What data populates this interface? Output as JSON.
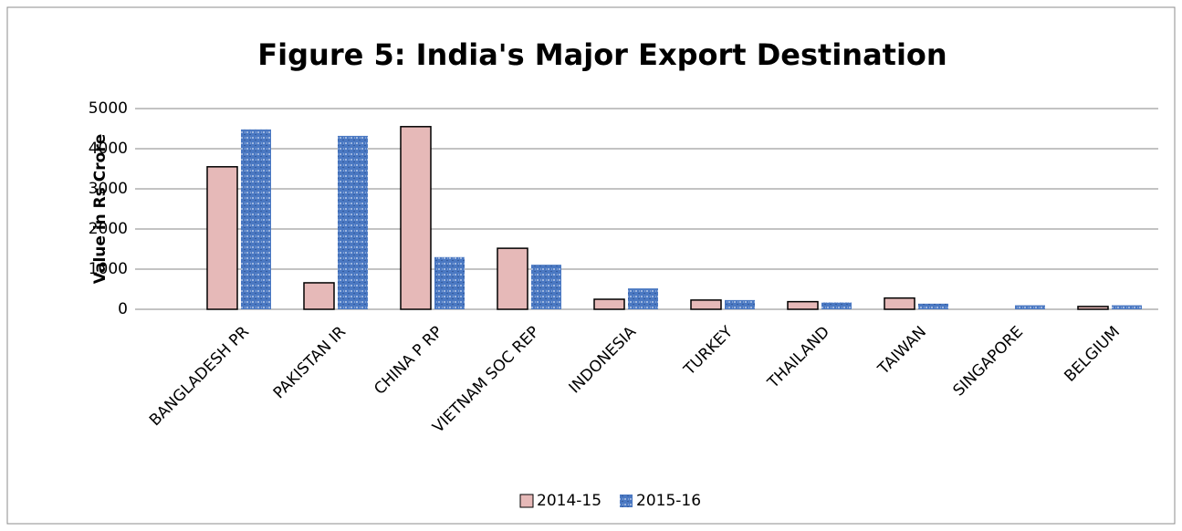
{
  "chart_data": {
    "type": "bar",
    "title": "Figure 5: India's Major Export Destination",
    "y_label": "Value in Rs Crore",
    "categories": [
      "BANGLADESH PR",
      "PAKISTAN IR",
      "CHINA P RP",
      "VIETNAM SOC REP",
      "INDONESIA",
      "TURKEY",
      "THAILAND",
      "TAIWAN",
      "SINGAPORE",
      "BELGIUM"
    ],
    "series": [
      {
        "name": "2014-15",
        "color": "#e6b9b8",
        "values": [
          3550,
          660,
          4550,
          1520,
          250,
          230,
          190,
          280,
          0,
          70
        ]
      },
      {
        "name": "2015-16",
        "color": "#4a78c2",
        "values": [
          4480,
          4320,
          1300,
          1110,
          520,
          230,
          170,
          140,
          100,
          100
        ]
      }
    ],
    "ylim": [
      0,
      5000
    ],
    "yticks": [
      0,
      1000,
      2000,
      3000,
      4000,
      5000
    ],
    "grid": true,
    "legend": "bottom"
  }
}
